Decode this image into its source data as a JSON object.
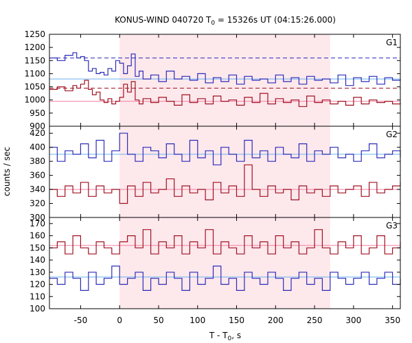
{
  "chart_data": {
    "type": "line",
    "title": {
      "prefix": "KONUS-WIND 040720 T",
      "sub": "0",
      "suffix": " = 15326s UT (04:15:26.000)"
    },
    "xlabel": {
      "prefix": "T - T",
      "sub": "0",
      "suffix": ", s"
    },
    "ylabel": "counts / sec",
    "xlim": [
      -90,
      360
    ],
    "xticks": [
      -50,
      0,
      50,
      100,
      150,
      200,
      250,
      300,
      350
    ],
    "shaded_interval": [
      0,
      270
    ],
    "grid": false,
    "colors": {
      "blue_series": "#2b2bb8",
      "red_series": "#a01020",
      "blue_fit": "#6ab0f0",
      "red_fit": "#f080a0",
      "shade": "#fde8ec"
    },
    "panels": [
      {
        "label": "G1",
        "ylim": [
          900,
          1250
        ],
        "yticks": [
          900,
          950,
          1000,
          1050,
          1100,
          1150,
          1200,
          1250
        ],
        "series": [
          {
            "color": "blue",
            "x": [
              -90,
              -80,
              -70,
              -60,
              -55,
              -50,
              -45,
              -40,
              -35,
              -30,
              -25,
              -20,
              -15,
              -10,
              -5,
              0,
              5,
              10,
              15,
              20,
              25,
              30,
              40,
              50,
              60,
              70,
              80,
              90,
              100,
              110,
              120,
              130,
              140,
              150,
              160,
              170,
              180,
              190,
              200,
              210,
              220,
              230,
              240,
              250,
              260,
              270,
              280,
              290,
              300,
              310,
              320,
              330,
              340,
              350,
              360
            ],
            "y": [
              1160,
              1150,
              1170,
              1180,
              1160,
              1165,
              1150,
              1110,
              1120,
              1100,
              1105,
              1095,
              1120,
              1110,
              1150,
              1140,
              1100,
              1130,
              1175,
              1090,
              1110,
              1080,
              1095,
              1070,
              1110,
              1080,
              1090,
              1075,
              1100,
              1065,
              1085,
              1070,
              1095,
              1060,
              1090,
              1075,
              1080,
              1065,
              1095,
              1070,
              1085,
              1060,
              1090,
              1075,
              1080,
              1065,
              1095,
              1055,
              1085,
              1070,
              1090,
              1060,
              1085,
              1075,
              1080
            ]
          },
          {
            "color": "red",
            "x": [
              -90,
              -80,
              -70,
              -60,
              -55,
              -50,
              -45,
              -40,
              -35,
              -30,
              -25,
              -20,
              -15,
              -10,
              -5,
              0,
              5,
              10,
              15,
              20,
              25,
              30,
              40,
              50,
              60,
              70,
              80,
              90,
              100,
              110,
              120,
              130,
              140,
              150,
              160,
              170,
              180,
              190,
              200,
              210,
              220,
              230,
              240,
              250,
              260,
              270,
              280,
              290,
              300,
              310,
              320,
              330,
              340,
              350,
              360
            ],
            "y": [
              1040,
              1050,
              1035,
              1055,
              1045,
              1060,
              1075,
              1040,
              1020,
              1030,
              1000,
              990,
              1005,
              985,
              995,
              1010,
              1060,
              1030,
              1070,
              1000,
              985,
              1005,
              990,
              1010,
              995,
              980,
              1020,
              990,
              1005,
              985,
              1015,
              995,
              1000,
              980,
              1010,
              990,
              1025,
              985,
              1005,
              990,
              1000,
              975,
              1015,
              990,
              1000,
              985,
              995,
              980,
              1010,
              985,
              1000,
              990,
              995,
              985,
              990
            ]
          }
        ],
        "fits": [
          {
            "color": "blue_fit",
            "y": 1080
          },
          {
            "color": "red_fit",
            "y": 995
          }
        ],
        "dashed_levels": [
          {
            "color": "blue",
            "y": 1160
          },
          {
            "color": "red",
            "y": 1045
          }
        ]
      },
      {
        "label": "G2",
        "ylim": [
          300,
          430
        ],
        "yticks": [
          300,
          320,
          340,
          360,
          380,
          400,
          420
        ],
        "series": [
          {
            "color": "blue",
            "x": [
              -90,
              -80,
              -70,
              -60,
              -50,
              -40,
              -30,
              -20,
              -10,
              0,
              10,
              20,
              30,
              40,
              50,
              60,
              70,
              80,
              90,
              100,
              110,
              120,
              130,
              140,
              150,
              160,
              170,
              180,
              190,
              200,
              210,
              220,
              230,
              240,
              250,
              260,
              270,
              280,
              290,
              300,
              310,
              320,
              330,
              340,
              350,
              360
            ],
            "y": [
              400,
              380,
              395,
              390,
              405,
              385,
              410,
              380,
              395,
              420,
              390,
              380,
              400,
              395,
              385,
              405,
              390,
              380,
              410,
              385,
              395,
              375,
              400,
              390,
              380,
              410,
              385,
              395,
              380,
              400,
              390,
              385,
              405,
              380,
              395,
              390,
              400,
              385,
              390,
              380,
              395,
              405,
              385,
              390,
              395,
              385
            ]
          },
          {
            "color": "red",
            "x": [
              -90,
              -80,
              -70,
              -60,
              -50,
              -40,
              -30,
              -20,
              -10,
              0,
              10,
              20,
              30,
              40,
              50,
              60,
              70,
              80,
              90,
              100,
              110,
              120,
              130,
              140,
              150,
              160,
              170,
              180,
              190,
              200,
              210,
              220,
              230,
              240,
              250,
              260,
              270,
              280,
              290,
              300,
              310,
              320,
              330,
              340,
              350,
              360
            ],
            "y": [
              340,
              330,
              345,
              335,
              350,
              330,
              345,
              335,
              340,
              320,
              345,
              330,
              350,
              335,
              340,
              355,
              330,
              345,
              335,
              340,
              325,
              350,
              335,
              345,
              330,
              375,
              340,
              330,
              345,
              335,
              340,
              325,
              345,
              335,
              340,
              330,
              345,
              335,
              340,
              345,
              330,
              350,
              335,
              340,
              345,
              350
            ]
          }
        ],
        "fits": [
          {
            "color": "blue_fit",
            "y": 390
          },
          {
            "color": "red_fit",
            "y": 340
          }
        ],
        "dashed_levels": []
      },
      {
        "label": "G3",
        "ylim": [
          100,
          175
        ],
        "yticks": [
          100,
          110,
          120,
          130,
          140,
          150,
          160,
          170
        ],
        "series": [
          {
            "color": "red",
            "x": [
              -90,
              -80,
              -70,
              -60,
              -50,
              -40,
              -30,
              -20,
              -10,
              0,
              10,
              20,
              30,
              40,
              50,
              60,
              70,
              80,
              90,
              100,
              110,
              120,
              130,
              140,
              150,
              160,
              170,
              180,
              190,
              200,
              210,
              220,
              230,
              240,
              250,
              260,
              270,
              280,
              290,
              300,
              310,
              320,
              330,
              340,
              350,
              360
            ],
            "y": [
              150,
              155,
              145,
              160,
              150,
              145,
              155,
              150,
              145,
              155,
              160,
              150,
              165,
              145,
              155,
              150,
              160,
              145,
              155,
              150,
              165,
              145,
              155,
              150,
              145,
              160,
              150,
              155,
              145,
              160,
              150,
              155,
              145,
              150,
              165,
              150,
              145,
              155,
              150,
              160,
              145,
              150,
              160,
              145,
              150,
              155
            ]
          },
          {
            "color": "blue",
            "x": [
              -90,
              -80,
              -70,
              -60,
              -50,
              -40,
              -30,
              -20,
              -10,
              0,
              10,
              20,
              30,
              40,
              50,
              60,
              70,
              80,
              90,
              100,
              110,
              120,
              130,
              140,
              150,
              160,
              170,
              180,
              190,
              200,
              210,
              220,
              230,
              240,
              250,
              260,
              270,
              280,
              290,
              300,
              310,
              320,
              330,
              340,
              350,
              360
            ],
            "y": [
              125,
              120,
              130,
              125,
              115,
              130,
              120,
              125,
              135,
              120,
              125,
              130,
              115,
              125,
              120,
              130,
              125,
              115,
              130,
              120,
              125,
              135,
              120,
              125,
              115,
              130,
              125,
              120,
              130,
              125,
              115,
              125,
              130,
              120,
              125,
              115,
              130,
              125,
              120,
              125,
              130,
              120,
              125,
              130,
              120,
              125
            ]
          }
        ],
        "fits": [
          {
            "color": "red_fit",
            "y": 152
          },
          {
            "color": "blue_fit",
            "y": 126
          }
        ],
        "dashed_levels": []
      }
    ]
  }
}
